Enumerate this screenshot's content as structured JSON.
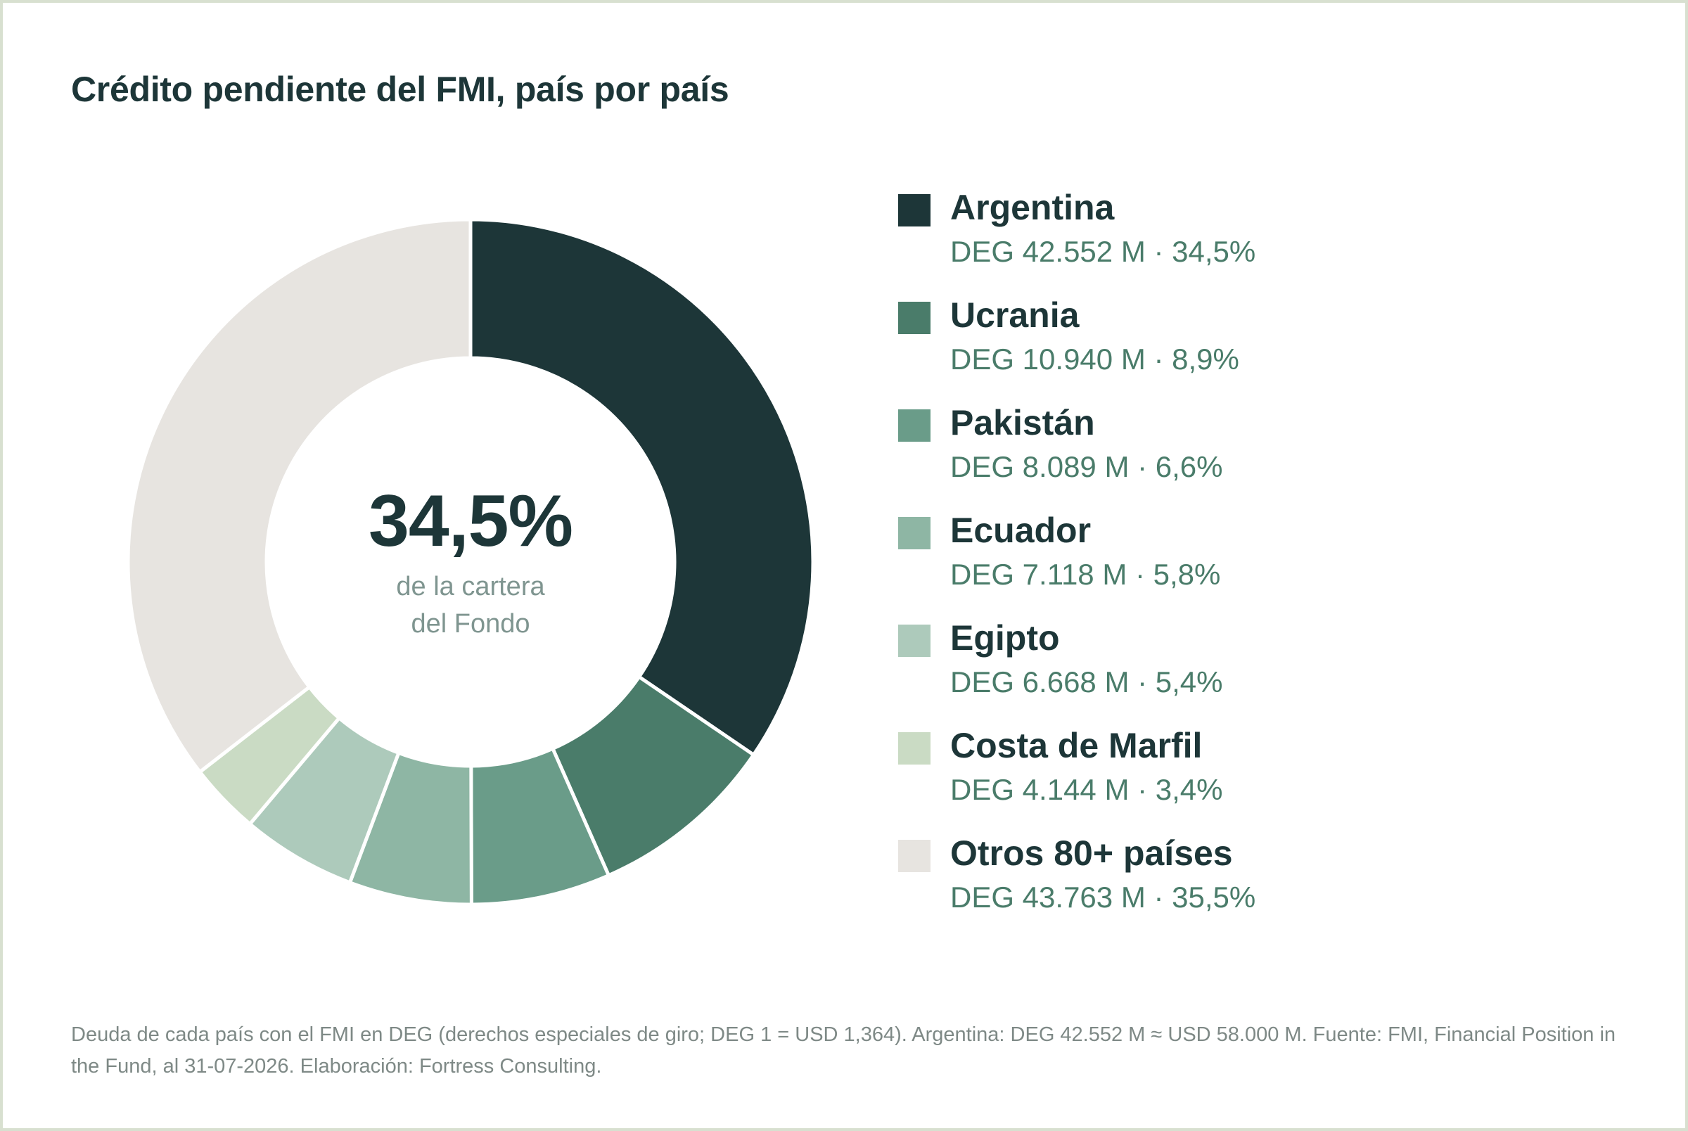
{
  "title": "Crédito pendiente del FMI, país por país",
  "center": {
    "value": "34,5%",
    "label_line1": "de la cartera",
    "label_line2": "del Fondo"
  },
  "legend": [
    {
      "name": "Argentina",
      "detail": "DEG 42.552 M · 34,5%",
      "color": "#1d3638"
    },
    {
      "name": "Ucrania",
      "detail": "DEG 10.940 M · 8,9%",
      "color": "#4a7c6a"
    },
    {
      "name": "Pakistán",
      "detail": "DEG 8.089 M · 6,6%",
      "color": "#6a9c89"
    },
    {
      "name": "Ecuador",
      "detail": "DEG 7.118 M · 5,8%",
      "color": "#8eb6a4"
    },
    {
      "name": "Egipto",
      "detail": "DEG 6.668 M · 5,4%",
      "color": "#adcabb"
    },
    {
      "name": "Costa de Marfil",
      "detail": "DEG 4.144 M · 3,4%",
      "color": "#cadbc4"
    },
    {
      "name": "Otros 80+ países",
      "detail": "DEG 43.763 M · 35,5%",
      "color": "#e7e4e0"
    }
  ],
  "footnote": "Deuda de cada país con el FMI en DEG (derechos especiales de giro; DEG 1 = USD 1,364). Argentina: DEG 42.552 M ≈ USD 58.000 M. Fuente: FMI, Financial Position in the Fund, al 31-07-2026. Elaboración: Fortress Consulting.",
  "chart_data": {
    "type": "pie",
    "donut": true,
    "title": "Crédito pendiente del FMI, país por país",
    "unit": "DEG M",
    "categories": [
      "Argentina",
      "Ucrania",
      "Pakistán",
      "Ecuador",
      "Egipto",
      "Costa de Marfil",
      "Otros 80+ países"
    ],
    "values": [
      42552,
      10940,
      8089,
      7118,
      6668,
      4144,
      43763
    ],
    "percentages": [
      34.5,
      8.9,
      6.6,
      5.8,
      5.4,
      3.4,
      35.5
    ],
    "colors": [
      "#1d3638",
      "#4a7c6a",
      "#6a9c89",
      "#8eb6a4",
      "#adcabb",
      "#cadbc4",
      "#e7e4e0"
    ],
    "legend_position": "right"
  }
}
